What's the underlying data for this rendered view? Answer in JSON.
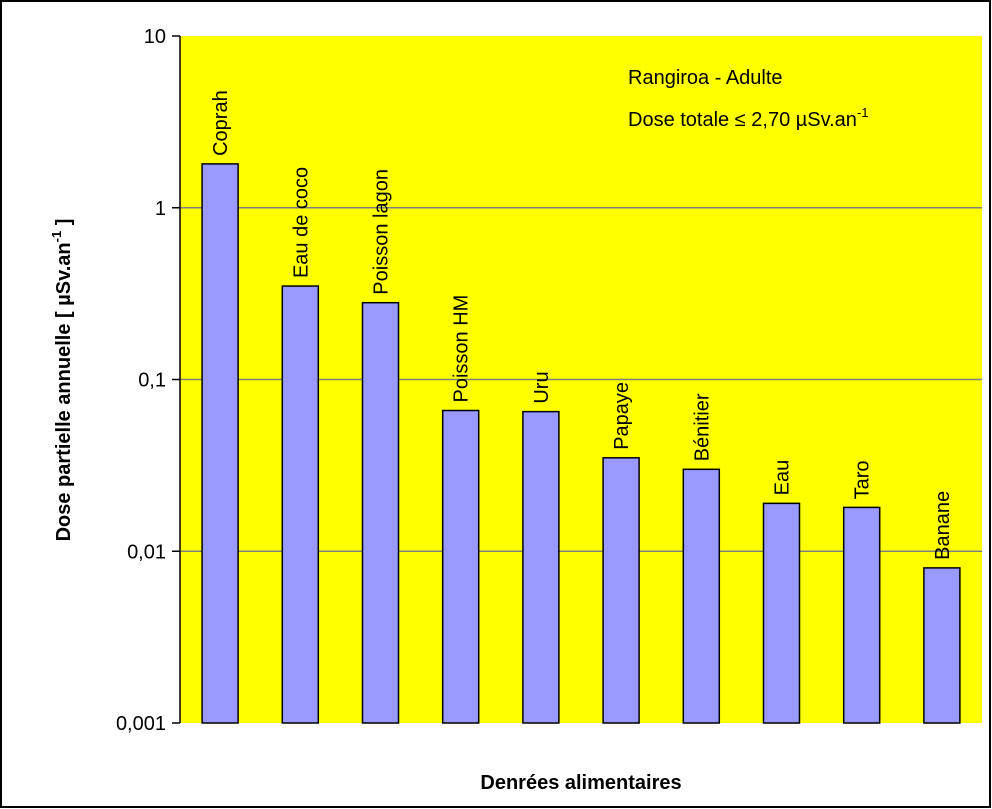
{
  "chart_data": {
    "type": "bar",
    "log_scale": true,
    "grid": true,
    "categories": [
      "Coprah",
      "Eau de coco",
      "Poisson lagon",
      "Poisson HM",
      "Uru",
      "Papaye",
      "Bénitier",
      "Eau",
      "Taro",
      "Banane"
    ],
    "values": [
      1.8,
      0.35,
      0.28,
      0.066,
      0.065,
      0.035,
      0.03,
      0.019,
      0.018,
      0.008
    ],
    "color": "#9999ff",
    "ylim": [
      0.001,
      10
    ],
    "yticks": [
      {
        "value": 0.001,
        "label": "0,001"
      },
      {
        "value": 0.01,
        "label": "0,01"
      },
      {
        "value": 0.1,
        "label": "0,1"
      },
      1,
      10
    ],
    "xlabel": "Denrées alimentaires",
    "ylabel": {
      "text": "Dose partielle annuelle [ µSv.an",
      "sup": "-1",
      "end": " ]"
    },
    "annotations": [
      {
        "text": "Rangiroa - Adulte"
      },
      {
        "text": "Dose totale ≤ 2,70 µSv.an",
        "sup": "-1"
      }
    ]
  }
}
